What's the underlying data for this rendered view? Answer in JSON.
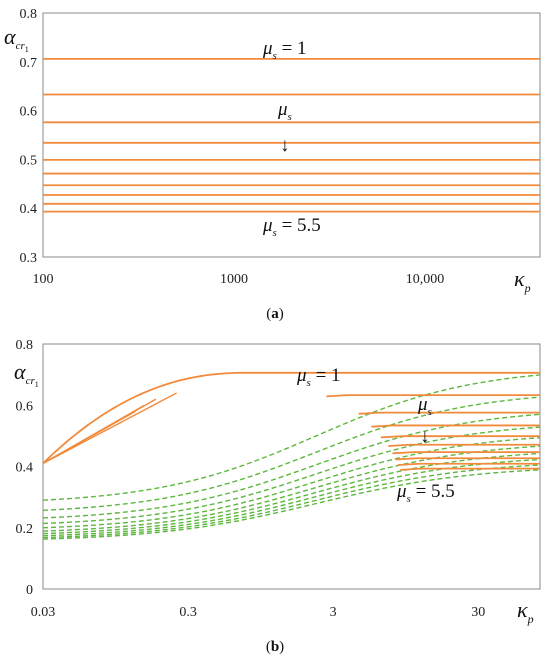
{
  "chart_data": [
    {
      "id": "a",
      "type": "line",
      "caption_label": "a",
      "xscale": "log",
      "xlim": [
        100,
        40000
      ],
      "ylim": [
        0.3,
        0.8
      ],
      "xticks": [
        {
          "value": 100,
          "label": "100"
        },
        {
          "value": 1000,
          "label": "1000"
        },
        {
          "value": 10000,
          "label": "10,000"
        }
      ],
      "yticks": [
        0.3,
        0.4,
        0.5,
        0.6,
        0.7,
        0.8
      ],
      "ytick_labels": [
        "0.3",
        "0.4",
        "0.5",
        "0.6",
        "0.7",
        "0.8"
      ],
      "grid": false,
      "color": "#f28a3c",
      "series_values": [
        0.706,
        0.633,
        0.576,
        0.534,
        0.499,
        0.471,
        0.447,
        0.427,
        0.409,
        0.393
      ],
      "annotations": [
        {
          "text": "μs = 1",
          "at": [
            1800,
            0.728
          ]
        },
        {
          "text": "μs",
          "at": [
            1800,
            0.605
          ]
        },
        {
          "text": "↓",
          "at": [
            1800,
            0.54
          ]
        },
        {
          "text": "μs = 5.5",
          "at": [
            1800,
            0.365
          ]
        }
      ]
    },
    {
      "id": "b",
      "type": "line",
      "caption_label": "b",
      "xscale": "log",
      "xlim": [
        0.03,
        80
      ],
      "ylim": [
        0,
        0.8
      ],
      "xticks": [
        {
          "value": 0.03,
          "label": "0.03"
        },
        {
          "value": 0.3,
          "label": "0.3"
        },
        {
          "value": 3,
          "label": "3"
        },
        {
          "value": 30,
          "label": "30"
        }
      ],
      "yticks": [
        0,
        0.2,
        0.4,
        0.6,
        0.8
      ],
      "ytick_labels": [
        "0",
        "0.2",
        "0.4",
        "0.6",
        "0.8"
      ],
      "grid": false,
      "solid_color": "#f28a3c",
      "dashed_color": "#5cb83d",
      "mu_values": [
        1,
        1.5,
        2,
        2.5,
        3,
        3.5,
        4,
        4.5,
        5,
        5.5
      ],
      "plateau_values": [
        0.706,
        0.633,
        0.576,
        0.534,
        0.499,
        0.471,
        0.447,
        0.427,
        0.409,
        0.393
      ],
      "dashed_start_values": [
        0.29,
        0.257,
        0.232,
        0.214,
        0.2,
        0.189,
        0.181,
        0.174,
        0.168,
        0.163
      ],
      "solid_start_kappa": [
        0.03,
        2.7,
        4.5,
        5.5,
        6.4,
        7.2,
        7.7,
        8.1,
        8.4,
        8.7
      ],
      "early_branch_end_kappa": [
        0.25,
        0.18,
        0.15,
        0.13
      ],
      "annotations": [
        {
          "text": "μs = 1",
          "at": [
            1.6,
            0.745
          ]
        },
        {
          "text": "μs",
          "at": [
            14,
            0.58
          ]
        },
        {
          "text": "↓",
          "at": [
            14,
            0.51
          ]
        },
        {
          "text": "μs = 5.5",
          "at": [
            7,
            0.33
          ]
        }
      ]
    }
  ],
  "axis_symbols": {
    "y_main": "α",
    "y_sub": "cr",
    "y_subsub": "1",
    "x_main": "κ",
    "x_sub": "p",
    "mu_main": "μ",
    "mu_sub": "s"
  },
  "captions": {
    "a_open": "(",
    "a_letter": "a",
    "a_close": ")",
    "b_open": "(",
    "b_letter": "b",
    "b_close": ")"
  }
}
